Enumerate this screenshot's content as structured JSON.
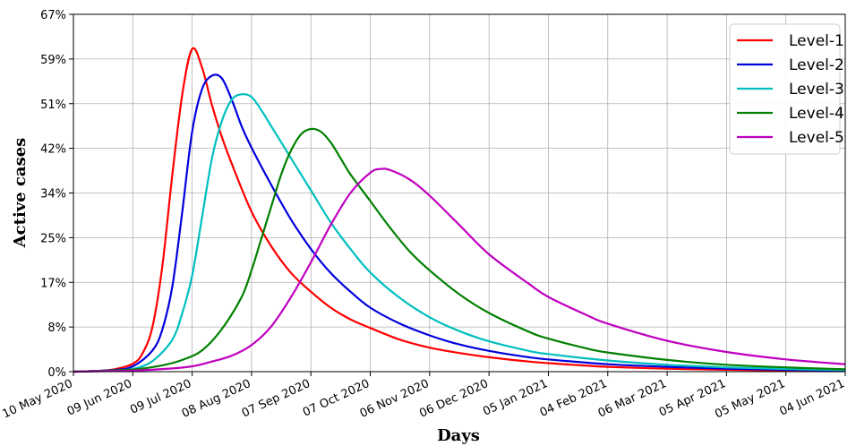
{
  "chart_data": {
    "type": "line",
    "xlabel": "Days",
    "ylabel": "Active cases",
    "x_tick_labels": [
      "10 May 2020",
      "09 Jun 2020",
      "09 Jul 2020",
      "08 Aug 2020",
      "07 Sep 2020",
      "07 Oct 2020",
      "06 Nov 2020",
      "06 Dec 2020",
      "05 Jan 2021",
      "04 Feb 2021",
      "06 Mar 2021",
      "05 Apr 2021",
      "05 May 2021",
      "04 Jun 2021"
    ],
    "y_tick_labels": [
      "0%",
      "8%",
      "17%",
      "25%",
      "34%",
      "42%",
      "51%",
      "59%",
      "67%"
    ],
    "ylim": [
      0,
      67
    ],
    "xlim": [
      "2020-05-10",
      "2021-06-04"
    ],
    "grid": true,
    "legend_position": "top-right",
    "series": [
      {
        "name": "Level-1",
        "color": "#ff0000",
        "x": [
          "2020-05-10",
          "2020-05-20",
          "2020-05-30",
          "2020-06-09",
          "2020-06-14",
          "2020-06-19",
          "2020-06-24",
          "2020-06-29",
          "2020-07-04",
          "2020-07-09",
          "2020-07-14",
          "2020-07-19",
          "2020-07-24",
          "2020-07-29",
          "2020-08-08",
          "2020-08-18",
          "2020-08-28",
          "2020-09-07",
          "2020-09-17",
          "2020-09-27",
          "2020-10-07",
          "2020-10-22",
          "2020-11-06",
          "2020-11-21",
          "2020-12-06",
          "2020-12-26",
          "2021-01-05",
          "2021-01-25",
          "2021-02-04",
          "2021-03-06",
          "2021-04-05",
          "2021-05-05",
          "2021-06-04"
        ],
        "y": [
          0,
          0.1,
          0.4,
          1.5,
          3.5,
          8.5,
          20,
          37,
          52,
          60.5,
          57,
          50,
          44,
          39,
          30,
          23.5,
          18.5,
          15,
          12,
          9.8,
          8.2,
          6,
          4.5,
          3.5,
          2.7,
          1.9,
          1.6,
          1.1,
          0.9,
          0.55,
          0.35,
          0.2,
          0.1
        ]
      },
      {
        "name": "Level-2",
        "color": "#0000dd",
        "x": [
          "2020-05-10",
          "2020-05-30",
          "2020-06-09",
          "2020-06-19",
          "2020-06-24",
          "2020-06-29",
          "2020-07-04",
          "2020-07-09",
          "2020-07-14",
          "2020-07-19",
          "2020-07-24",
          "2020-07-29",
          "2020-08-03",
          "2020-08-08",
          "2020-08-18",
          "2020-08-28",
          "2020-09-07",
          "2020-09-17",
          "2020-09-27",
          "2020-10-07",
          "2020-10-22",
          "2020-11-06",
          "2020-11-21",
          "2020-12-06",
          "2020-12-26",
          "2021-01-05",
          "2021-02-04",
          "2021-03-06",
          "2021-04-05",
          "2021-05-05",
          "2021-06-04"
        ],
        "y": [
          0,
          0.3,
          1,
          4,
          8,
          16,
          30,
          45,
          53,
          55.5,
          55,
          51,
          46,
          42,
          35,
          28.5,
          23,
          18.5,
          15,
          12,
          9,
          6.8,
          5.1,
          3.9,
          2.7,
          2.3,
          1.4,
          0.9,
          0.55,
          0.35,
          0.2
        ]
      },
      {
        "name": "Level-3",
        "color": "#00bfbf",
        "x": [
          "2020-05-10",
          "2020-05-30",
          "2020-06-09",
          "2020-06-19",
          "2020-06-29",
          "2020-07-04",
          "2020-07-09",
          "2020-07-14",
          "2020-07-19",
          "2020-07-24",
          "2020-07-29",
          "2020-08-03",
          "2020-08-08",
          "2020-08-13",
          "2020-08-18",
          "2020-08-28",
          "2020-09-07",
          "2020-09-17",
          "2020-09-27",
          "2020-10-07",
          "2020-10-22",
          "2020-11-06",
          "2020-11-21",
          "2020-12-06",
          "2020-12-26",
          "2021-01-05",
          "2021-02-04",
          "2021-03-06",
          "2021-04-05",
          "2021-05-05",
          "2021-06-04"
        ],
        "y": [
          0,
          0.2,
          0.5,
          2,
          6,
          11,
          18,
          29,
          40,
          47,
          51,
          52,
          51.5,
          49,
          46,
          40,
          34,
          28,
          23,
          18.6,
          13.8,
          10.2,
          7.6,
          5.7,
          3.9,
          3.3,
          2.1,
          1.3,
          0.8,
          0.5,
          0.3
        ]
      },
      {
        "name": "Level-4",
        "color": "#008000",
        "x": [
          "2020-05-10",
          "2020-06-09",
          "2020-06-24",
          "2020-07-04",
          "2020-07-14",
          "2020-07-24",
          "2020-08-03",
          "2020-08-08",
          "2020-08-13",
          "2020-08-18",
          "2020-08-23",
          "2020-08-28",
          "2020-09-02",
          "2020-09-07",
          "2020-09-12",
          "2020-09-17",
          "2020-09-22",
          "2020-09-27",
          "2020-10-07",
          "2020-10-17",
          "2020-10-27",
          "2020-11-06",
          "2020-11-21",
          "2020-12-06",
          "2020-12-26",
          "2021-01-05",
          "2021-01-25",
          "2021-02-04",
          "2021-03-06",
          "2021-04-05",
          "2021-05-05",
          "2021-06-04"
        ],
        "y": [
          0,
          0.4,
          1.2,
          2.2,
          4,
          8,
          14,
          19,
          25,
          31,
          37,
          41.5,
          44.5,
          45.5,
          45,
          43,
          40,
          37,
          32,
          27,
          22.5,
          19,
          14.5,
          11,
          7.5,
          6.2,
          4.3,
          3.6,
          2.2,
          1.3,
          0.8,
          0.45
        ]
      },
      {
        "name": "Level-5",
        "color": "#bf00bf",
        "x": [
          "2020-05-10",
          "2020-06-09",
          "2020-06-29",
          "2020-07-09",
          "2020-07-19",
          "2020-07-29",
          "2020-08-08",
          "2020-08-18",
          "2020-08-28",
          "2020-09-07",
          "2020-09-17",
          "2020-09-27",
          "2020-10-07",
          "2020-10-12",
          "2020-10-17",
          "2020-10-27",
          "2020-11-06",
          "2020-11-21",
          "2020-12-06",
          "2020-12-26",
          "2021-01-05",
          "2021-01-25",
          "2021-02-04",
          "2021-03-06",
          "2021-04-05",
          "2021-05-05",
          "2021-06-04"
        ],
        "y": [
          0,
          0.2,
          0.6,
          1,
          1.9,
          3,
          5,
          8.5,
          14,
          20.5,
          27.5,
          33.5,
          37.3,
          38,
          37.8,
          36,
          33,
          27.5,
          22,
          16.5,
          14,
          10.5,
          9,
          5.8,
          3.7,
          2.3,
          1.4
        ]
      }
    ]
  }
}
